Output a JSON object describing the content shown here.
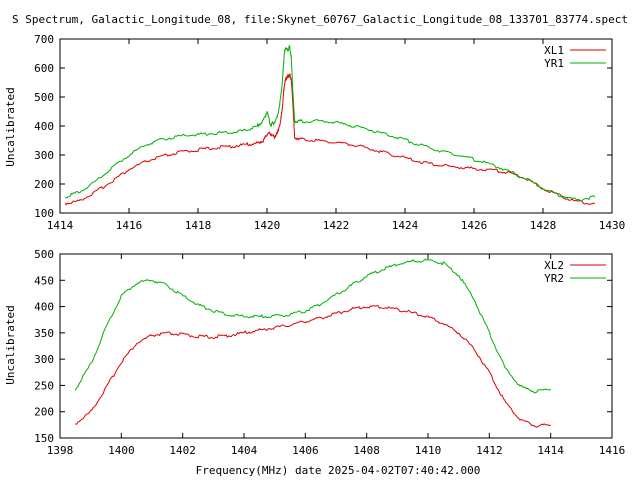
{
  "title": "S Spectrum, Galactic_Longitude_08, file:Skynet_60767_Galactic_Longitude_08_133701_83774.spect",
  "colors": {
    "red": "#e00000",
    "green": "#00b000",
    "axis": "#000000"
  },
  "chart_data": [
    {
      "type": "line",
      "ylabel": "Uncalibrated",
      "xlabel": "",
      "xlim": [
        1414,
        1430
      ],
      "ylim": [
        100,
        700
      ],
      "xticks": [
        1414,
        1416,
        1418,
        1420,
        1422,
        1424,
        1426,
        1428,
        1430
      ],
      "yticks": [
        100,
        200,
        300,
        400,
        500,
        600,
        700
      ],
      "legend_position": "top-right",
      "grid": false,
      "series": [
        {
          "name": "XL1",
          "color": "#e00000",
          "x": [
            1414.15,
            1414.5,
            1415,
            1415.5,
            1416,
            1416.5,
            1417,
            1417.5,
            1418,
            1418.5,
            1419,
            1419.4,
            1419.7,
            1419.9,
            1420.0,
            1420.1,
            1420.2,
            1420.3,
            1420.4,
            1420.45,
            1420.5,
            1420.55,
            1420.6,
            1420.65,
            1420.7,
            1420.75,
            1420.8,
            1421,
            1421.5,
            1422,
            1422.5,
            1423,
            1423.5,
            1424,
            1424.5,
            1425,
            1425.5,
            1426,
            1426.5,
            1427,
            1427.5,
            1428,
            1428.5,
            1429,
            1429.5
          ],
          "y": [
            133,
            140,
            170,
            210,
            250,
            278,
            296,
            310,
            318,
            325,
            330,
            336,
            340,
            350,
            372,
            375,
            362,
            375,
            420,
            470,
            540,
            565,
            570,
            575,
            565,
            480,
            360,
            355,
            350,
            343,
            335,
            322,
            305,
            290,
            275,
            265,
            258,
            253,
            248,
            240,
            220,
            185,
            160,
            138,
            132
          ]
        },
        {
          "name": "YR1",
          "color": "#00b000",
          "x": [
            1414.15,
            1414.5,
            1415,
            1415.5,
            1416,
            1416.5,
            1417,
            1417.5,
            1418,
            1418.5,
            1419,
            1419.4,
            1419.7,
            1419.9,
            1420.0,
            1420.1,
            1420.2,
            1420.3,
            1420.4,
            1420.45,
            1420.5,
            1420.55,
            1420.6,
            1420.65,
            1420.7,
            1420.75,
            1420.8,
            1421,
            1421.5,
            1422,
            1422.5,
            1423,
            1423.5,
            1424,
            1424.5,
            1425,
            1425.5,
            1426,
            1426.5,
            1427,
            1427.5,
            1428,
            1428.5,
            1429,
            1429.5
          ],
          "y": [
            155,
            170,
            205,
            255,
            300,
            335,
            355,
            365,
            370,
            375,
            380,
            385,
            398,
            420,
            450,
            405,
            410,
            430,
            500,
            560,
            650,
            670,
            660,
            675,
            640,
            520,
            418,
            416,
            418,
            412,
            400,
            386,
            370,
            352,
            332,
            315,
            300,
            285,
            268,
            245,
            218,
            185,
            160,
            145,
            155
          ]
        }
      ]
    },
    {
      "type": "line",
      "ylabel": "Uncalibrated",
      "xlabel": "Frequency(MHz) date 2025-04-02T07:40:42.000",
      "xlim": [
        1398,
        1416
      ],
      "ylim": [
        150,
        500
      ],
      "xticks": [
        1398,
        1400,
        1402,
        1404,
        1406,
        1408,
        1410,
        1412,
        1414,
        1416
      ],
      "yticks": [
        150,
        200,
        250,
        300,
        350,
        400,
        450,
        500
      ],
      "legend_position": "top-right",
      "grid": false,
      "series": [
        {
          "name": "XL2",
          "color": "#e00000",
          "x": [
            1398.5,
            1399,
            1399.5,
            1400,
            1400.5,
            1401,
            1401.5,
            1402,
            1402.5,
            1403,
            1403.5,
            1404,
            1404.5,
            1405,
            1405.5,
            1406,
            1406.5,
            1407,
            1407.5,
            1408,
            1408.5,
            1409,
            1409.5,
            1410,
            1410.5,
            1411,
            1411.5,
            1412,
            1412.5,
            1413,
            1413.5,
            1414
          ],
          "y": [
            177,
            200,
            245,
            295,
            330,
            345,
            349,
            347,
            343,
            342,
            345,
            350,
            355,
            360,
            365,
            372,
            378,
            387,
            395,
            400,
            399,
            395,
            388,
            380,
            368,
            350,
            320,
            275,
            220,
            185,
            173,
            175
          ]
        },
        {
          "name": "YR2",
          "color": "#00b000",
          "x": [
            1398.5,
            1399,
            1399.5,
            1400,
            1400.5,
            1401,
            1401.5,
            1402,
            1402.5,
            1403,
            1403.5,
            1404,
            1404.5,
            1405,
            1405.5,
            1406,
            1406.5,
            1407,
            1407.5,
            1408,
            1408.5,
            1409,
            1409.5,
            1410,
            1410.5,
            1411,
            1411.5,
            1412,
            1412.5,
            1413,
            1413.5,
            1414
          ],
          "y": [
            243,
            290,
            360,
            420,
            445,
            450,
            440,
            420,
            403,
            392,
            385,
            381,
            381,
            382,
            385,
            392,
            405,
            422,
            440,
            458,
            470,
            480,
            486,
            488,
            482,
            460,
            415,
            350,
            285,
            248,
            238,
            243
          ]
        }
      ]
    }
  ]
}
